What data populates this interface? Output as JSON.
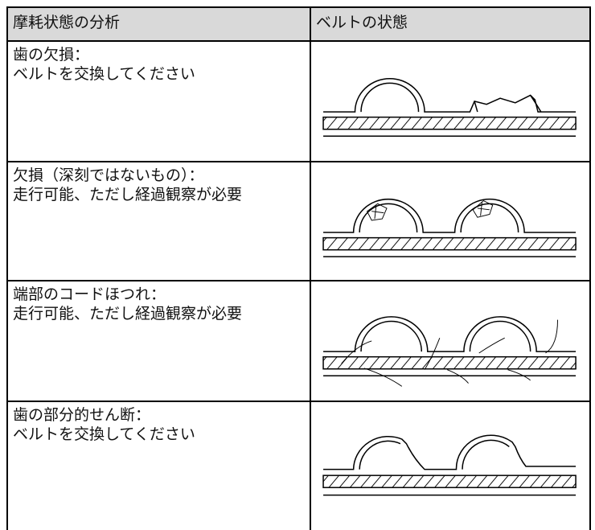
{
  "table": {
    "headers": [
      "摩耗状態の分析",
      "ベルトの状態"
    ],
    "rows": [
      {
        "condition": "歯の欠損：",
        "action": "ベルトを交換してください"
      },
      {
        "condition": "欠損（深刻ではないもの）：",
        "action": "走行可能、ただし経過観察が必要"
      },
      {
        "condition": "端部のコードほつれ：",
        "action": "走行可能、ただし経過観察が必要"
      },
      {
        "condition": "歯の部分的せん断：",
        "action": "ベルトを交換してください"
      }
    ]
  }
}
